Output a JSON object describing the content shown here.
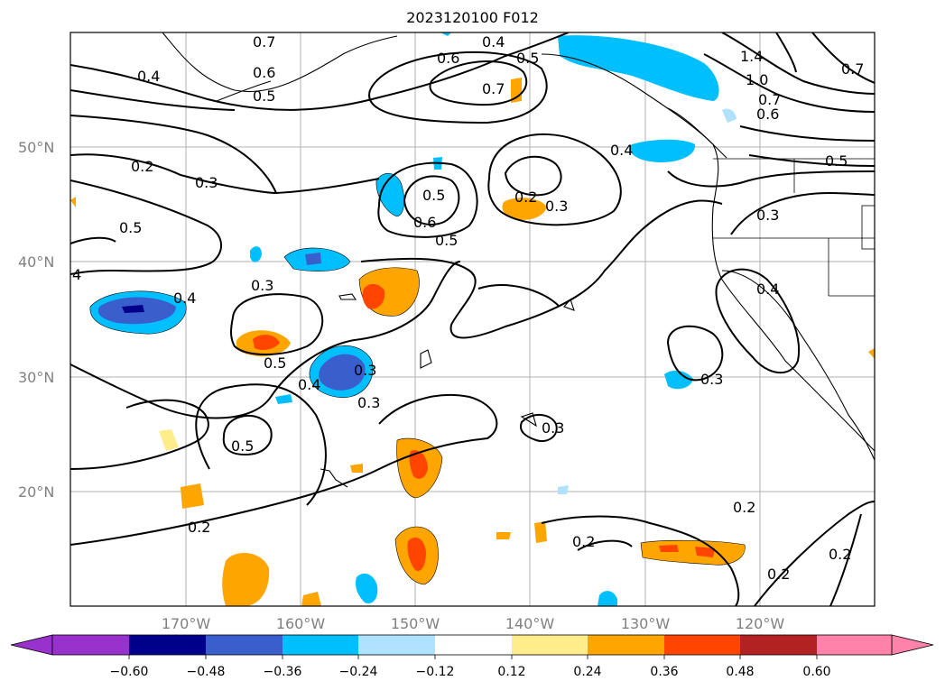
{
  "title": "2023120100 F012",
  "map": {
    "lat_labels": [
      "50°N",
      "40°N",
      "30°N",
      "20°N"
    ],
    "lon_labels": [
      "170°W",
      "160°W",
      "150°W",
      "140°W",
      "130°W",
      "120°W"
    ],
    "contour_labels": [
      "0.7",
      "0.6",
      "0.5",
      "0.4",
      "0.2",
      "0.3",
      "0.5",
      "4",
      "0.4",
      "0.3",
      "0.5",
      "0.4",
      "0.3",
      "0.3",
      "0.5",
      "0.2",
      "0.6",
      "0.5",
      "0.7",
      "0.4",
      "0.5",
      "0.6",
      "0.5",
      "0.2",
      "0.3",
      "0.4",
      "1.4",
      "1.0",
      "0.7",
      "0.6",
      "0.5",
      "0.7",
      "0.3",
      "0.4",
      "0.3",
      "0.3",
      "0.2",
      "0.2",
      "0.2",
      "0.2"
    ]
  },
  "colorbar": {
    "ticks": [
      "−0.60",
      "−0.48",
      "−0.36",
      "−0.24",
      "−0.12",
      "0.12",
      "0.24",
      "0.36",
      "0.48",
      "0.60"
    ],
    "colors": [
      "#9932cc",
      "#00008b",
      "#3a5fcd",
      "#00bfff",
      "#b0e2ff",
      "#ffffff",
      "#ffec8b",
      "#ffa500",
      "#ff4500",
      "#b22222",
      "#ff82ab"
    ]
  }
}
